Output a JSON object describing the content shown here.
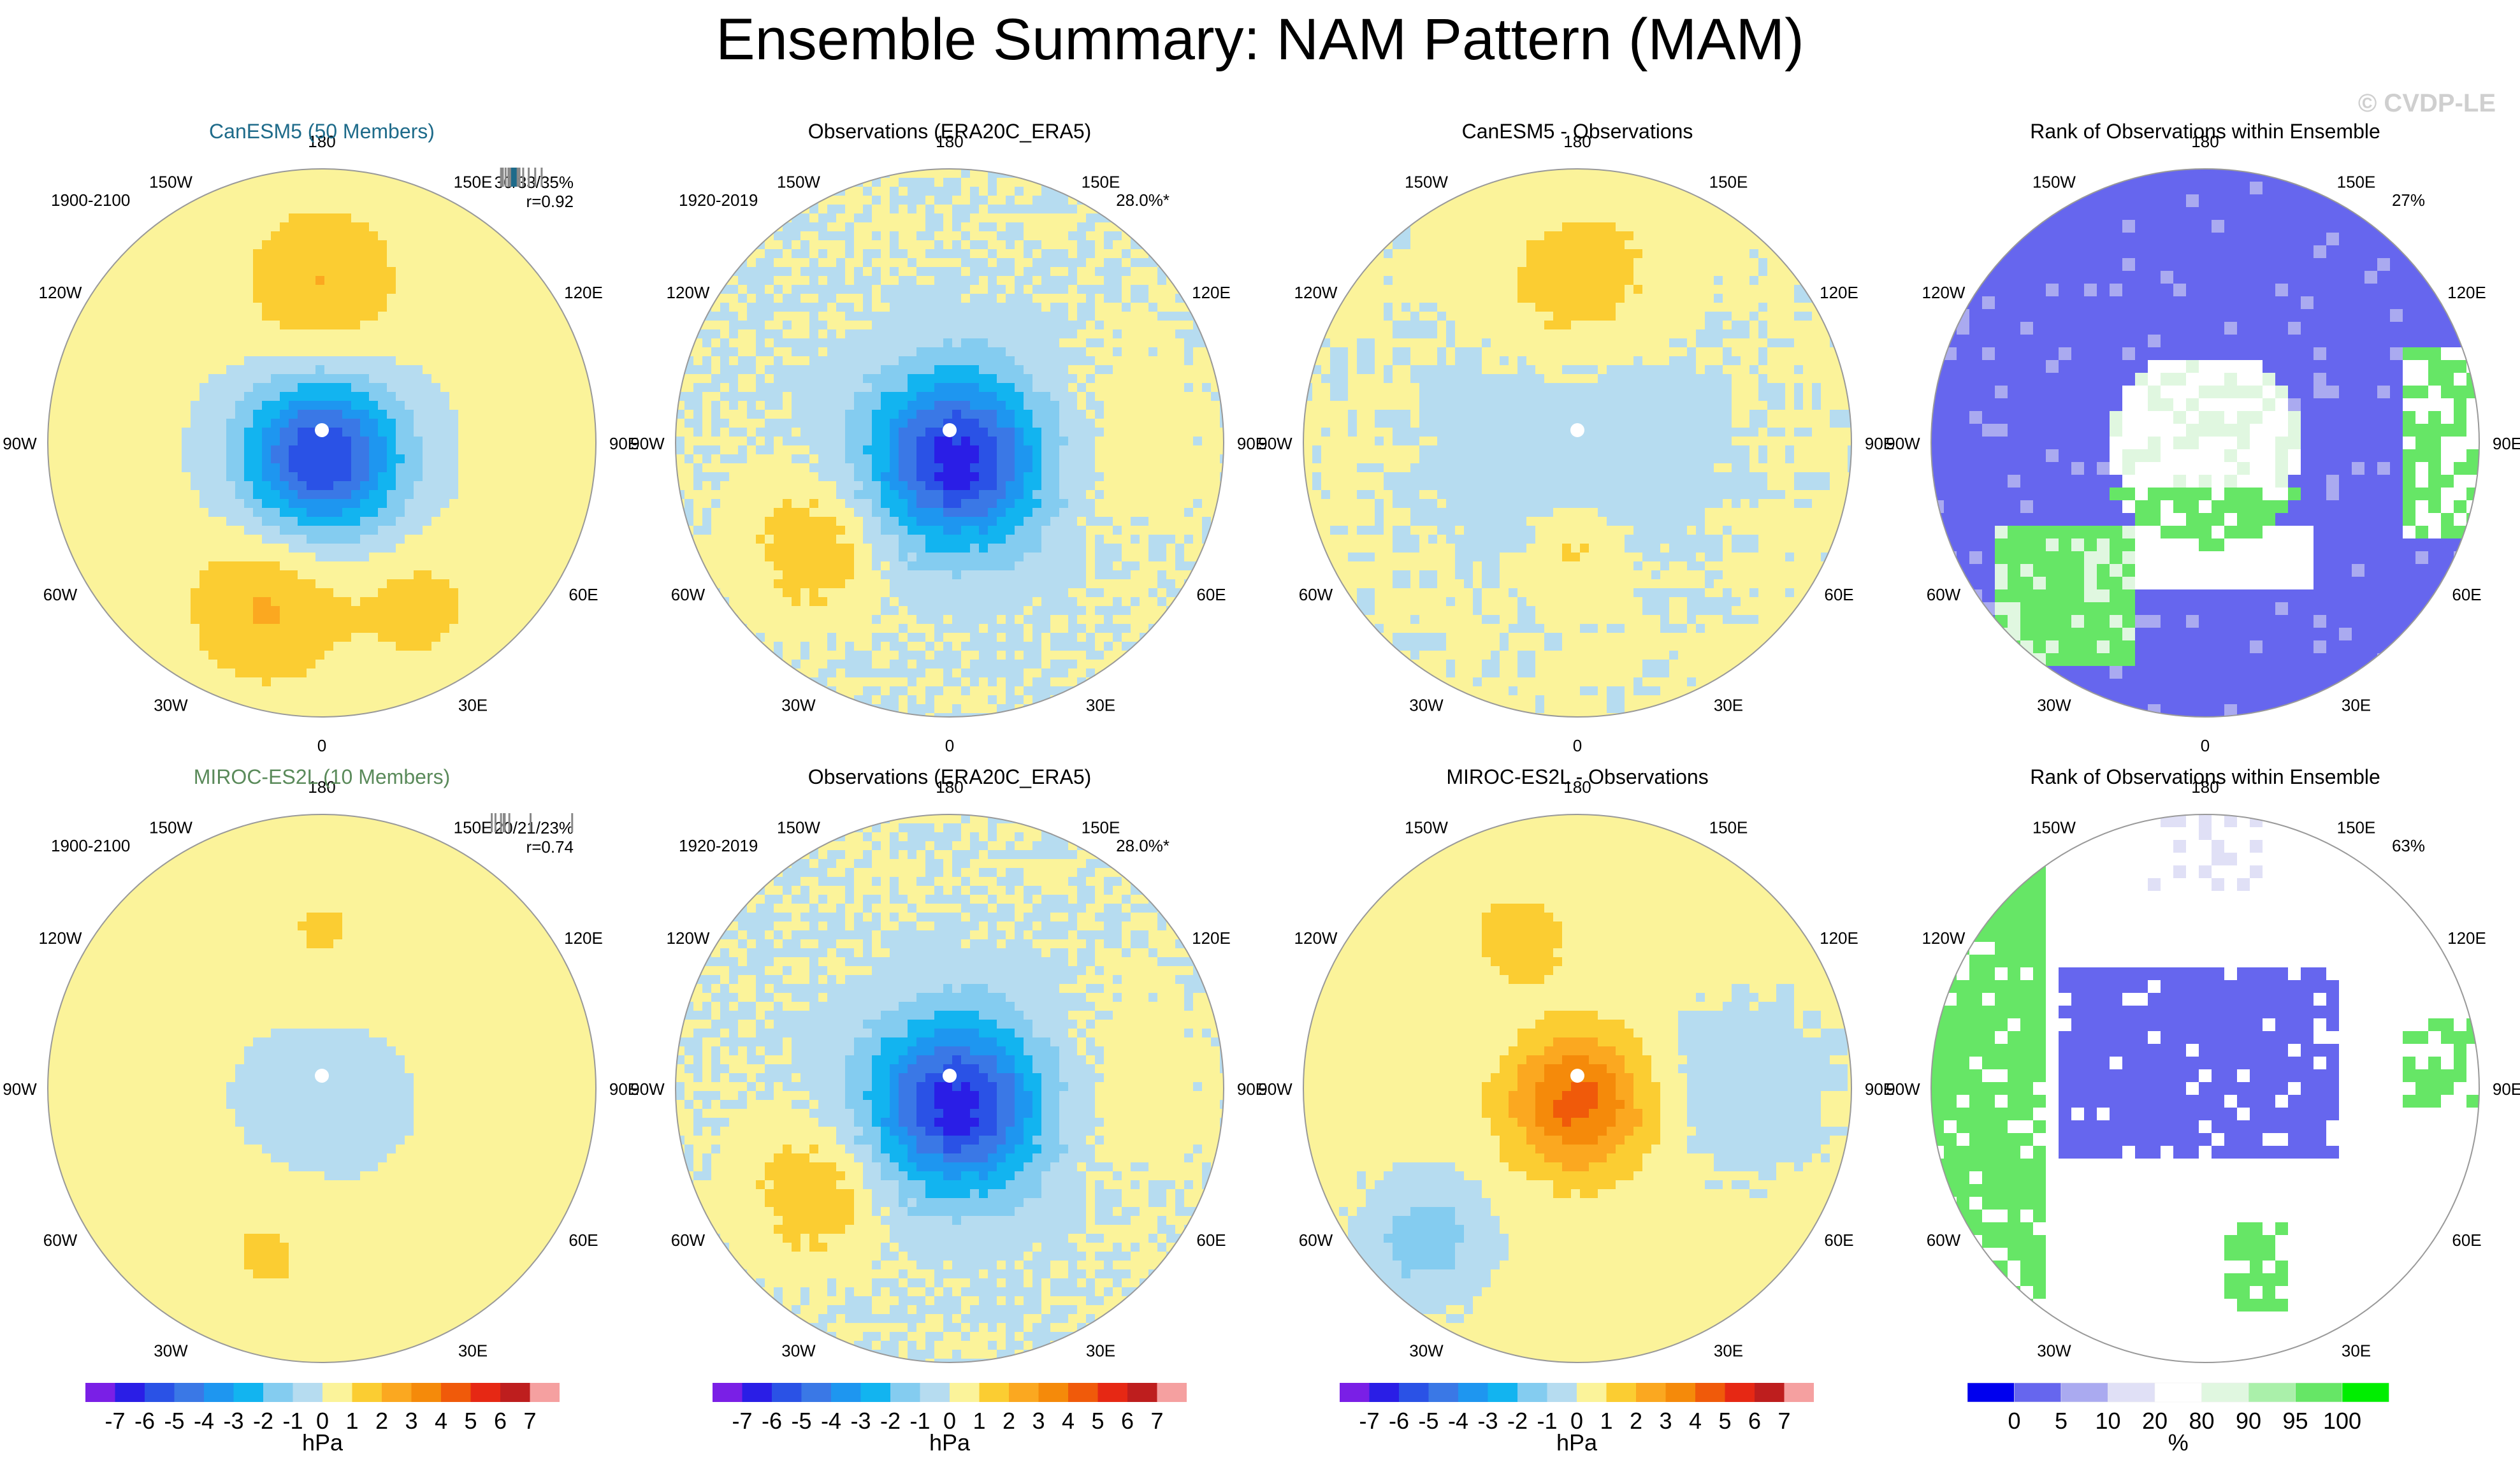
{
  "title": "Ensemble Summary: NAM Pattern (MAM)",
  "credit": "© CVDP-LE",
  "colors": {
    "hpa": [
      "#7a1fe6",
      "#2a1ee6",
      "#2a52e6",
      "#3a78e6",
      "#1e96f0",
      "#12b4f0",
      "#84ccf0",
      "#b6dcf0",
      "#fbf39a",
      "#fbcd32",
      "#fba820",
      "#f58a0a",
      "#f05a0a",
      "#e62814",
      "#be1e1e",
      "#f5a0a0"
    ],
    "rank": [
      "#0000ee",
      "#6666ee",
      "#aaaaf0",
      "#e0e0f6",
      "#ffffff",
      "#e0f7e0",
      "#aaf0aa",
      "#66e666",
      "#00ee00"
    ]
  },
  "lon_labels": [
    "180",
    "150E",
    "120E",
    "90E",
    "60E",
    "30E",
    "0",
    "30W",
    "60W",
    "90W",
    "120W",
    "150W"
  ],
  "colorbars": {
    "hpa": {
      "labels": [
        "-7",
        "-6",
        "-5",
        "-4",
        "-3",
        "-2",
        "-1",
        "0",
        "1",
        "2",
        "3",
        "4",
        "5",
        "6",
        "7"
      ],
      "unit": "hPa"
    },
    "rank": {
      "labels": [
        "0",
        "5",
        "10",
        "20",
        "80",
        "90",
        "95",
        "100"
      ],
      "unit": "%"
    }
  },
  "chart_data": [
    {
      "type": "heatmap",
      "name": "panel-canesm5",
      "title": "CanESM5 (50 Members)",
      "title_color": "#1e6b8a",
      "period": "1900-2100",
      "stat": "30/33/35%",
      "r": "r=0.92",
      "field": "nam",
      "amp": 1.0,
      "pol": 0.9,
      "ticks": [
        0.18,
        0.2,
        0.23,
        0.26,
        0.28,
        0.3,
        0.31,
        0.32,
        0.33,
        0.34,
        0.35,
        0.36,
        0.38,
        0.42,
        0.48,
        0.55,
        0.62
      ]
    },
    {
      "type": "heatmap",
      "name": "panel-obs-top",
      "title": "Observations (ERA20C_ERA5)",
      "title_color": "#000000",
      "period": "1920-2019",
      "pct": "28.0%*",
      "field": "obs",
      "amp": 1.0,
      "pol": 1.0
    },
    {
      "type": "heatmap",
      "name": "panel-canesm5-diff",
      "title": "CanESM5 - Observations",
      "title_color": "#000000",
      "field": "diff1",
      "amp": 1.0
    },
    {
      "type": "heatmap",
      "name": "panel-rank-top",
      "title": "Rank of Observations within Ensemble",
      "title_color": "#000000",
      "pct": "27%",
      "field": "rank1"
    },
    {
      "type": "heatmap",
      "name": "panel-miroc",
      "title": "MIROC-ES2L (10 Members)",
      "title_color": "#5a8a5a",
      "period": "1900-2100",
      "stat": "20/21/23%",
      "r": "r=0.74",
      "field": "nam",
      "amp": 0.45,
      "pol": 0.35,
      "ticks": [
        0.08,
        0.12,
        0.18,
        0.21,
        0.22,
        0.27,
        0.5,
        0.95
      ]
    },
    {
      "type": "heatmap",
      "name": "panel-obs-bottom",
      "title": "Observations (ERA20C_ERA5)",
      "title_color": "#000000",
      "period": "1920-2019",
      "pct": "28.0%*",
      "field": "obs",
      "amp": 1.0,
      "pol": 1.0
    },
    {
      "type": "heatmap",
      "name": "panel-miroc-diff",
      "title": "MIROC-ES2L - Observations",
      "title_color": "#000000",
      "field": "diff2",
      "amp": 1.0
    },
    {
      "type": "heatmap",
      "name": "panel-rank-bottom",
      "title": "Rank of Observations within Ensemble",
      "title_color": "#000000",
      "pct": "63%",
      "field": "rank2"
    }
  ]
}
